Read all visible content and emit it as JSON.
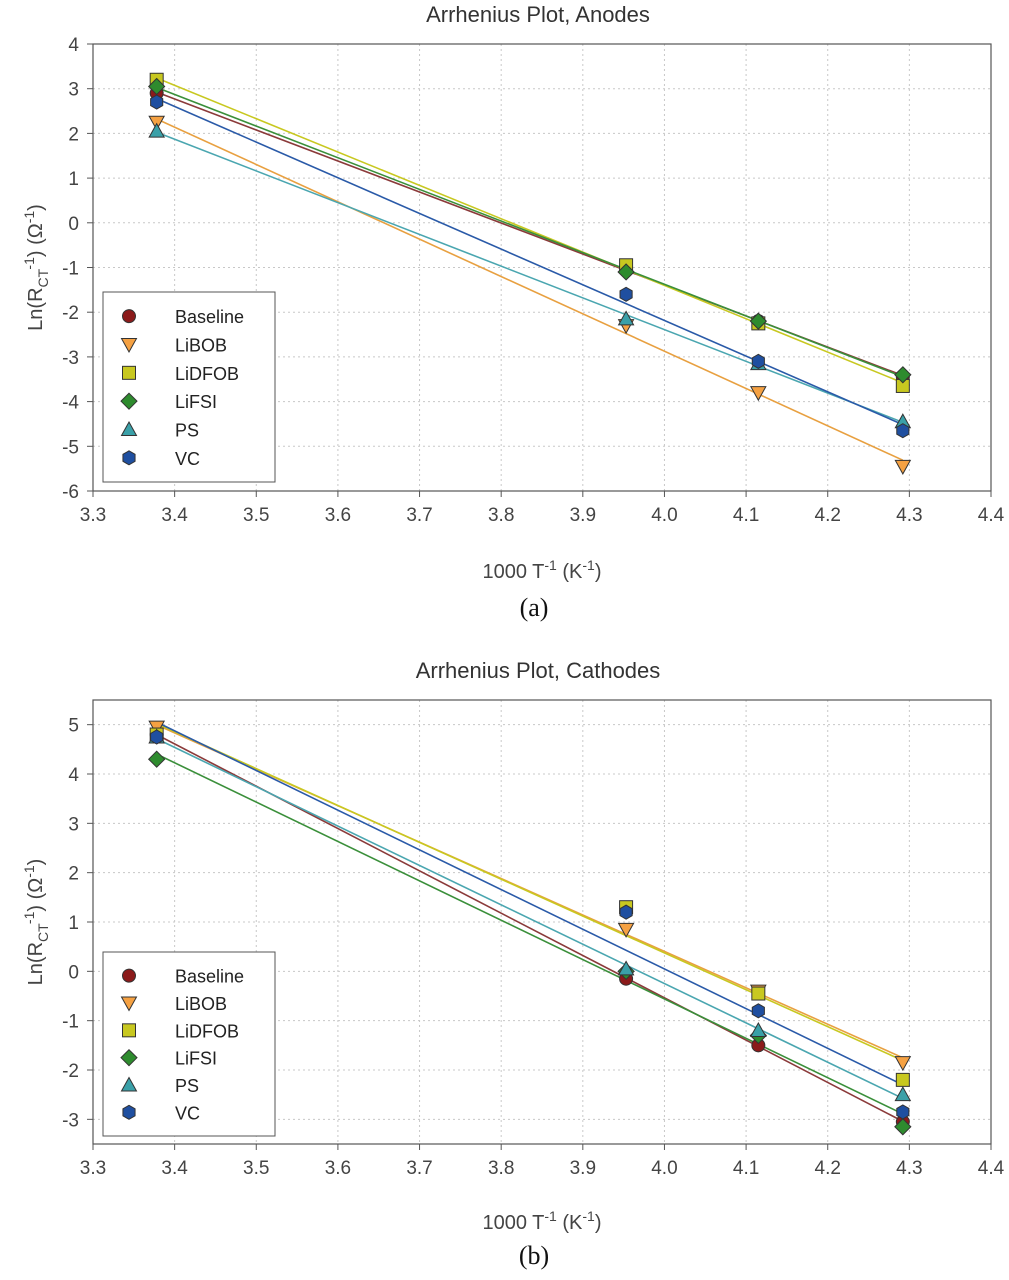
{
  "chart_data": [
    {
      "type": "scatter",
      "title": "Arrhenius Plot, Anodes",
      "caption": "(a)",
      "xlabel": {
        "main": "1000 T",
        "sup1": "-1",
        "unit": " (K",
        "sup2": "-1",
        "close": ")"
      },
      "ylabel": {
        "pre": "Ln(R",
        "sub": "CT",
        "sup": "-1",
        "post": ") (Ω",
        "sup2": "-1",
        "close": ")"
      },
      "xlim": [
        3.3,
        4.4
      ],
      "ylim": [
        -6,
        4
      ],
      "xticks": [
        "3.3",
        "3.4",
        "3.5",
        "3.6",
        "3.7",
        "3.8",
        "3.9",
        "4.0",
        "4.1",
        "4.2",
        "4.3",
        "4.4"
      ],
      "yticks": [
        "4",
        "3",
        "2",
        "1",
        "0",
        "-1",
        "-2",
        "-3",
        "-4",
        "-5",
        "-6"
      ],
      "grid": true,
      "legend_position": "bottom-left",
      "x": [
        3.378,
        3.953,
        4.115,
        4.292
      ],
      "series": [
        {
          "name": "Baseline",
          "marker": "circle",
          "color": "#8b1a1a",
          "line": "#8b3a3a",
          "values": [
            2.9,
            -1.0,
            -2.2,
            -3.45
          ]
        },
        {
          "name": "LiBOB",
          "marker": "triangle-down",
          "color": "#f5a142",
          "line": "#e8a040",
          "values": [
            2.25,
            -2.3,
            -3.8,
            -5.45
          ]
        },
        {
          "name": "LiDFOB",
          "marker": "square",
          "color": "#c8c820",
          "line": "#c8c820",
          "values": [
            3.2,
            -0.95,
            -2.25,
            -3.65
          ]
        },
        {
          "name": "LiFSI",
          "marker": "diamond",
          "color": "#2e8b2e",
          "line": "#3a8f3a",
          "values": [
            3.05,
            -1.1,
            -2.2,
            -3.4
          ]
        },
        {
          "name": "PS",
          "marker": "triangle-up",
          "color": "#3aa0a8",
          "line": "#4aa6b0",
          "values": [
            2.05,
            -2.15,
            -3.15,
            -4.45
          ]
        },
        {
          "name": "VC",
          "marker": "hexagon",
          "color": "#1f4fa0",
          "line": "#2a5aa8",
          "values": [
            2.7,
            -1.6,
            -3.1,
            -4.65
          ]
        }
      ]
    },
    {
      "type": "scatter",
      "title": "Arrhenius Plot, Cathodes",
      "caption": "(b)",
      "xlabel": {
        "main": "1000 T",
        "sup1": "-1",
        "unit": " (K",
        "sup2": "-1",
        "close": ")"
      },
      "ylabel": {
        "pre": "Ln(R",
        "sub": "CT",
        "sup": "-1",
        "post": ") (Ω",
        "sup2": "-1",
        "close": ")"
      },
      "xlim": [
        3.3,
        4.4
      ],
      "ylim": [
        -3.5,
        5.5
      ],
      "xticks": [
        "3.3",
        "3.4",
        "3.5",
        "3.6",
        "3.7",
        "3.8",
        "3.9",
        "4.0",
        "4.1",
        "4.2",
        "4.3",
        "4.4"
      ],
      "yticks": [
        "5",
        "4",
        "3",
        "2",
        "1",
        "0",
        "-1",
        "-2",
        "-3"
      ],
      "grid": true,
      "legend_position": "bottom-left",
      "x": [
        3.378,
        3.953,
        4.115,
        4.292
      ],
      "series": [
        {
          "name": "Baseline",
          "marker": "circle",
          "color": "#8b1a1a",
          "line": "#8b3a3a",
          "values": [
            4.8,
            -0.15,
            -1.5,
            -3.05
          ]
        },
        {
          "name": "LiBOB",
          "marker": "triangle-down",
          "color": "#f5a142",
          "line": "#e8a040",
          "values": [
            4.95,
            0.85,
            -0.4,
            -1.85
          ]
        },
        {
          "name": "LiDFOB",
          "marker": "square",
          "color": "#c8c820",
          "line": "#c8c820",
          "values": [
            4.8,
            1.3,
            -0.45,
            -2.2
          ]
        },
        {
          "name": "LiFSI",
          "marker": "diamond",
          "color": "#2e8b2e",
          "line": "#3a8f3a",
          "values": [
            4.3,
            0.0,
            -1.3,
            -3.15
          ]
        },
        {
          "name": "PS",
          "marker": "triangle-up",
          "color": "#3aa0a8",
          "line": "#4aa6b0",
          "values": [
            4.75,
            0.05,
            -1.2,
            -2.5
          ]
        },
        {
          "name": "VC",
          "marker": "hexagon",
          "color": "#1f4fa0",
          "line": "#2a5aa8",
          "values": [
            4.75,
            1.2,
            -0.8,
            -2.85
          ]
        }
      ]
    }
  ]
}
